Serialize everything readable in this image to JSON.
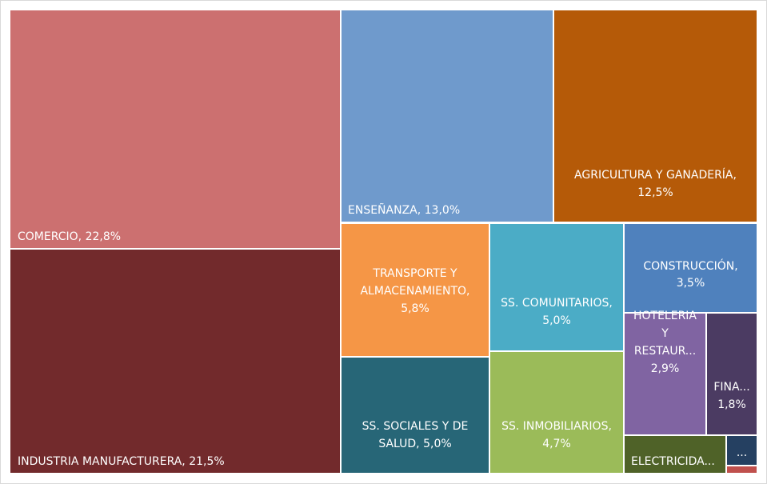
{
  "chart_data": {
    "type": "treemap",
    "value_unit": "%",
    "items": [
      {
        "name": "COMERCIO",
        "value": 22.8,
        "label_lines": [
          "COMERCIO, 22,8%"
        ],
        "color": "#cc7070"
      },
      {
        "name": "INDUSTRIA MANUFACTURERA",
        "value": 21.5,
        "label_lines": [
          "INDUSTRIA MANUFACTURERA, 21,5%"
        ],
        "color": "#722a2c"
      },
      {
        "name": "ENSEÑANZA",
        "value": 13.0,
        "label_lines": [
          "ENSEÑANZA, 13,0%"
        ],
        "color": "#6f9acc"
      },
      {
        "name": "AGRICULTURA Y GANADERÍA",
        "value": 12.5,
        "label_lines": [
          "AGRICULTURA Y GANADERÍA,",
          "12,5%"
        ],
        "color": "#b55a08"
      },
      {
        "name": "TRANSPORTE Y ALMACENAMIENTO",
        "value": 5.8,
        "label_lines": [
          "TRANSPORTE Y",
          "ALMACENAMIENTO,",
          "5,8%"
        ],
        "color": "#f59646"
      },
      {
        "name": "SS. SOCIALES Y DE SALUD",
        "value": 5.0,
        "label_lines": [
          "SS. SOCIALES Y DE",
          "SALUD, 5,0%"
        ],
        "color": "#276677"
      },
      {
        "name": "SS. COMUNITARIOS",
        "value": 5.0,
        "label_lines": [
          "SS. COMUNITARIOS,",
          "5,0%"
        ],
        "color": "#4bacc6"
      },
      {
        "name": "SS. INMOBILIARIOS",
        "value": 4.7,
        "label_lines": [
          "SS. INMOBILIARIOS,",
          "4,7%"
        ],
        "color": "#9bbb59"
      },
      {
        "name": "CONSTRUCCIÓN",
        "value": 3.5,
        "label_lines": [
          "CONSTRUCCIÓN,",
          "3,5%"
        ],
        "color": "#4f81bd"
      },
      {
        "name": "HOTELERIA Y RESTAURANTES",
        "value": 2.9,
        "label_lines": [
          "HOTELERIA",
          "Y",
          "RESTAUR...",
          "2,9%"
        ],
        "color": "#8064a2"
      },
      {
        "name": "FINANZAS",
        "value": 1.8,
        "label_lines": [
          "FINA...",
          "1,8%"
        ],
        "color": "#4b3b62"
      },
      {
        "name": "ELECTRICIDAD",
        "value": null,
        "label_lines": [
          "ELECTRICIDA..."
        ],
        "color": "#4f6228"
      },
      {
        "name": "",
        "value": null,
        "label_lines": [
          "..."
        ],
        "color": "#254061"
      },
      {
        "name": "",
        "value": null,
        "label_lines": [],
        "color": "#c0504d"
      }
    ]
  }
}
